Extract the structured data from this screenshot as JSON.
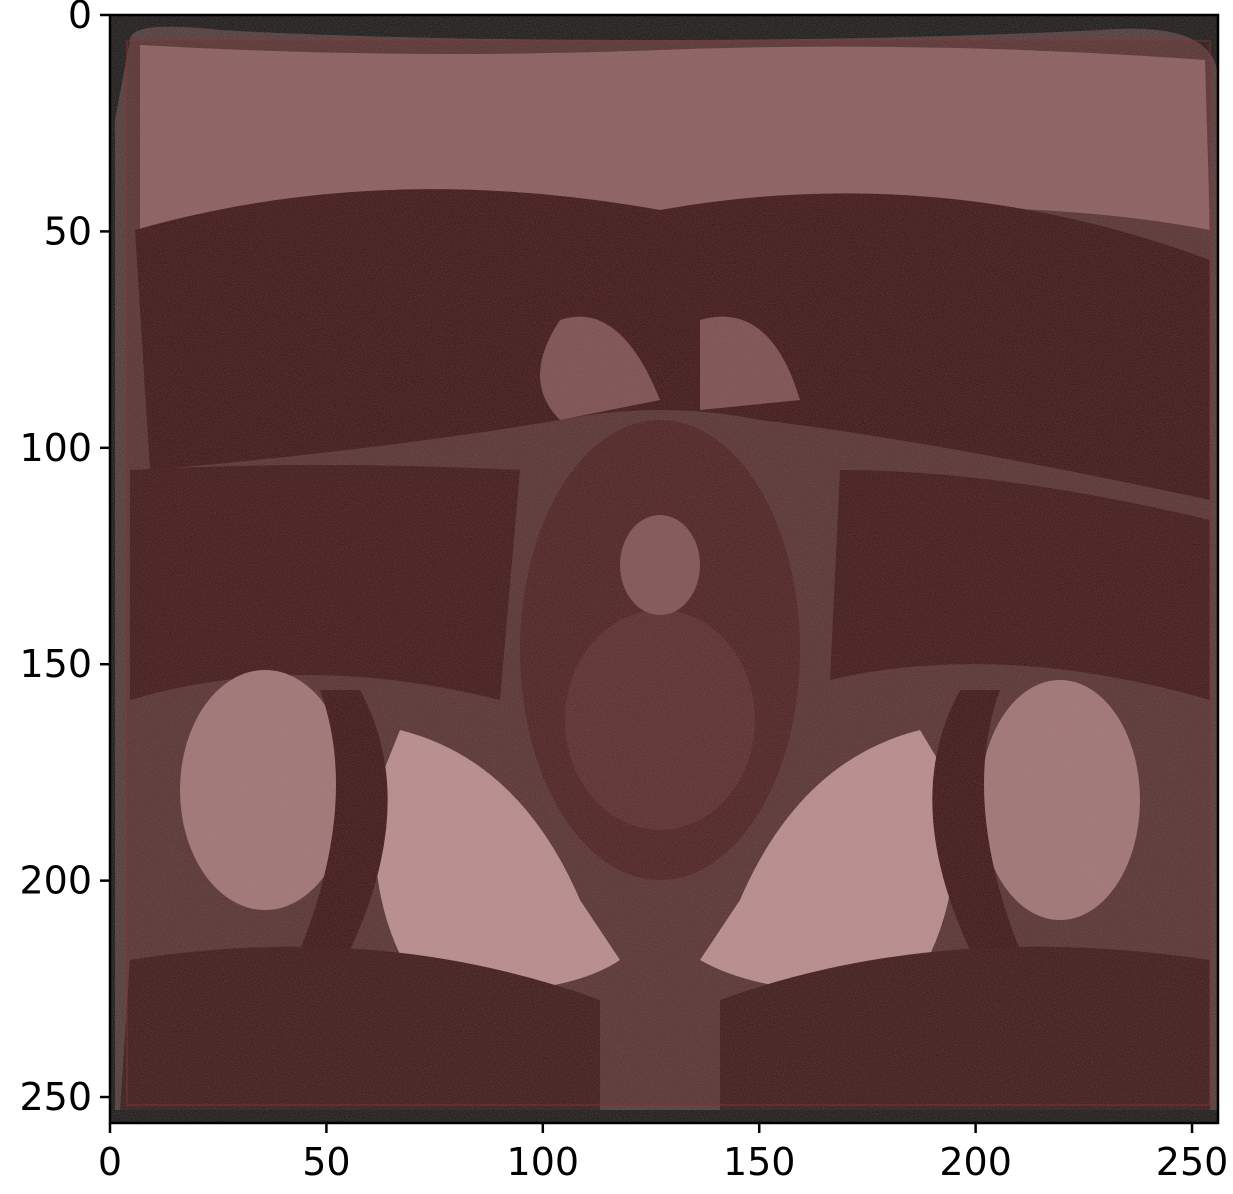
{
  "figure": {
    "kind": "image-plot",
    "description_visible": "grayscale axial MRI slice with semi-transparent red overlay",
    "x_axis": {
      "range": [
        0,
        256
      ],
      "ticks": [
        0,
        50,
        100,
        150,
        200,
        250
      ],
      "tick_labels": [
        "0",
        "50",
        "100",
        "150",
        "200",
        "250"
      ]
    },
    "y_axis": {
      "range": [
        0,
        256
      ],
      "inverted": true,
      "ticks": [
        0,
        50,
        100,
        150,
        200,
        250
      ],
      "tick_labels": [
        "0",
        "50",
        "100",
        "150",
        "200",
        "250"
      ]
    },
    "overlay": {
      "color": "#7a2020",
      "x_range": [
        4,
        254
      ],
      "y_range": [
        6,
        251
      ]
    },
    "colors": {
      "background_dark": "#1a0d0d",
      "tissue_light": "#c9a8a8",
      "muscle_dark": "#2a0e0e"
    }
  }
}
